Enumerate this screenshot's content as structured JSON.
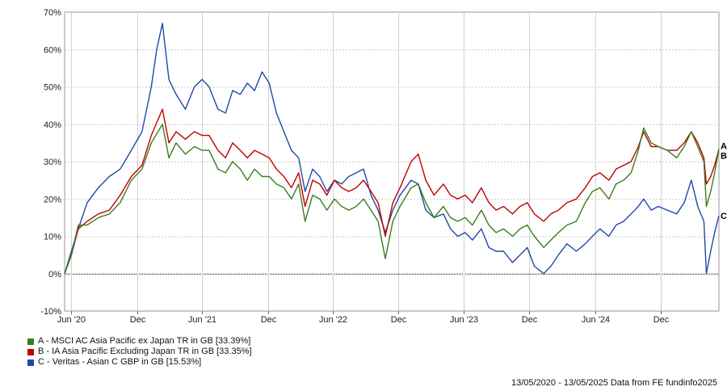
{
  "chart_data": {
    "type": "line",
    "xlabel": "",
    "ylabel": "",
    "x_range": [
      "2020-05-13",
      "2025-05-13"
    ],
    "ylim": [
      -10,
      70
    ],
    "y_ticks": [
      -10,
      0,
      10,
      20,
      30,
      40,
      50,
      60,
      70
    ],
    "y_tick_labels": [
      "-10%",
      "0%",
      "10%",
      "20%",
      "30%",
      "40%",
      "50%",
      "60%",
      "70%"
    ],
    "x_ticks": [
      {
        "date": "2020-06-01",
        "label": "Jun '20"
      },
      {
        "date": "2020-12-01",
        "label": "Dec"
      },
      {
        "date": "2021-06-01",
        "label": "Jun '21"
      },
      {
        "date": "2021-12-01",
        "label": "Dec"
      },
      {
        "date": "2022-06-01",
        "label": "Jun '22"
      },
      {
        "date": "2022-12-01",
        "label": "Dec"
      },
      {
        "date": "2023-06-01",
        "label": "Jun '23"
      },
      {
        "date": "2023-12-01",
        "label": "Dec"
      },
      {
        "date": "2024-06-01",
        "label": "Jun '24"
      },
      {
        "date": "2024-12-01",
        "label": "Dec"
      }
    ],
    "grid": true,
    "legend_position": "bottom-left",
    "series": [
      {
        "name": "A - MSCI AC Asia Pacific ex Japan TR in GB [33.39%]",
        "end_label": "A",
        "color": "#3a7d1e",
        "points": [
          [
            "2020-05-13",
            0
          ],
          [
            "2020-06-01",
            5
          ],
          [
            "2020-06-20",
            13
          ],
          [
            "2020-07-15",
            13
          ],
          [
            "2020-08-15",
            15
          ],
          [
            "2020-09-15",
            16
          ],
          [
            "2020-10-15",
            19
          ],
          [
            "2020-11-15",
            25
          ],
          [
            "2020-12-15",
            28
          ],
          [
            "2021-01-10",
            35
          ],
          [
            "2021-02-10",
            40
          ],
          [
            "2021-02-28",
            31
          ],
          [
            "2021-03-20",
            35
          ],
          [
            "2021-04-15",
            32
          ],
          [
            "2021-05-10",
            34
          ],
          [
            "2021-06-01",
            33
          ],
          [
            "2021-06-20",
            33
          ],
          [
            "2021-07-15",
            28
          ],
          [
            "2021-08-05",
            27
          ],
          [
            "2021-08-25",
            30
          ],
          [
            "2021-09-15",
            28
          ],
          [
            "2021-10-05",
            25
          ],
          [
            "2021-10-25",
            28
          ],
          [
            "2021-11-15",
            26
          ],
          [
            "2021-12-05",
            26
          ],
          [
            "2021-12-25",
            24
          ],
          [
            "2022-01-15",
            23
          ],
          [
            "2022-02-05",
            20
          ],
          [
            "2022-02-25",
            24
          ],
          [
            "2022-03-15",
            14
          ],
          [
            "2022-04-05",
            21
          ],
          [
            "2022-04-25",
            20
          ],
          [
            "2022-05-15",
            17
          ],
          [
            "2022-06-05",
            20
          ],
          [
            "2022-06-25",
            18
          ],
          [
            "2022-07-15",
            17
          ],
          [
            "2022-08-05",
            18
          ],
          [
            "2022-08-25",
            20
          ],
          [
            "2022-09-15",
            17
          ],
          [
            "2022-10-05",
            14
          ],
          [
            "2022-10-25",
            4
          ],
          [
            "2022-11-15",
            14
          ],
          [
            "2022-12-05",
            18
          ],
          [
            "2023-01-05",
            23
          ],
          [
            "2023-01-25",
            24
          ],
          [
            "2023-02-15",
            19
          ],
          [
            "2023-03-10",
            15
          ],
          [
            "2023-04-05",
            18
          ],
          [
            "2023-04-25",
            15
          ],
          [
            "2023-05-15",
            14
          ],
          [
            "2023-06-05",
            15
          ],
          [
            "2023-06-25",
            13
          ],
          [
            "2023-07-20",
            17
          ],
          [
            "2023-08-10",
            13
          ],
          [
            "2023-08-30",
            11
          ],
          [
            "2023-09-20",
            12
          ],
          [
            "2023-10-15",
            10
          ],
          [
            "2023-11-05",
            12
          ],
          [
            "2023-11-25",
            13
          ],
          [
            "2023-12-15",
            10
          ],
          [
            "2024-01-10",
            7
          ],
          [
            "2024-01-30",
            9
          ],
          [
            "2024-02-20",
            11
          ],
          [
            "2024-03-15",
            13
          ],
          [
            "2024-04-10",
            14
          ],
          [
            "2024-05-05",
            19
          ],
          [
            "2024-05-25",
            22
          ],
          [
            "2024-06-15",
            23
          ],
          [
            "2024-07-10",
            20
          ],
          [
            "2024-07-30",
            24
          ],
          [
            "2024-08-20",
            25
          ],
          [
            "2024-09-10",
            27
          ],
          [
            "2024-09-30",
            33
          ],
          [
            "2024-10-15",
            39
          ],
          [
            "2024-11-05",
            35
          ],
          [
            "2024-11-25",
            34
          ],
          [
            "2024-12-20",
            33
          ],
          [
            "2025-01-15",
            31
          ],
          [
            "2025-02-05",
            34
          ],
          [
            "2025-02-25",
            38
          ],
          [
            "2025-03-15",
            34
          ],
          [
            "2025-04-01",
            30
          ],
          [
            "2025-04-08",
            18
          ],
          [
            "2025-04-20",
            22
          ],
          [
            "2025-05-01",
            27
          ],
          [
            "2025-05-13",
            33.39
          ]
        ]
      },
      {
        "name": "B - IA Asia Pacific Excluding Japan TR in GB [33.35%]",
        "end_label": "B",
        "color": "#c00000",
        "points": [
          [
            "2020-05-13",
            0
          ],
          [
            "2020-06-01",
            5
          ],
          [
            "2020-06-20",
            12
          ],
          [
            "2020-07-15",
            14
          ],
          [
            "2020-08-15",
            16
          ],
          [
            "2020-09-15",
            17
          ],
          [
            "2020-10-15",
            21
          ],
          [
            "2020-11-15",
            26
          ],
          [
            "2020-12-15",
            29
          ],
          [
            "2021-01-10",
            37
          ],
          [
            "2021-02-10",
            44
          ],
          [
            "2021-02-28",
            35
          ],
          [
            "2021-03-20",
            38
          ],
          [
            "2021-04-15",
            36
          ],
          [
            "2021-05-10",
            38
          ],
          [
            "2021-06-01",
            37
          ],
          [
            "2021-06-20",
            37
          ],
          [
            "2021-07-15",
            33
          ],
          [
            "2021-08-05",
            31
          ],
          [
            "2021-08-25",
            35
          ],
          [
            "2021-09-15",
            33
          ],
          [
            "2021-10-05",
            31
          ],
          [
            "2021-10-25",
            33
          ],
          [
            "2021-11-15",
            32
          ],
          [
            "2021-12-05",
            31
          ],
          [
            "2021-12-25",
            28
          ],
          [
            "2022-01-15",
            26
          ],
          [
            "2022-02-05",
            23
          ],
          [
            "2022-02-25",
            27
          ],
          [
            "2022-03-15",
            18
          ],
          [
            "2022-04-05",
            25
          ],
          [
            "2022-04-25",
            24
          ],
          [
            "2022-05-15",
            21
          ],
          [
            "2022-06-05",
            25
          ],
          [
            "2022-06-25",
            23
          ],
          [
            "2022-07-15",
            22
          ],
          [
            "2022-08-05",
            23
          ],
          [
            "2022-08-25",
            25
          ],
          [
            "2022-09-15",
            22
          ],
          [
            "2022-10-05",
            19
          ],
          [
            "2022-10-25",
            10
          ],
          [
            "2022-11-15",
            19
          ],
          [
            "2022-12-05",
            23
          ],
          [
            "2023-01-05",
            30
          ],
          [
            "2023-01-25",
            32
          ],
          [
            "2023-02-15",
            25
          ],
          [
            "2023-03-10",
            21
          ],
          [
            "2023-04-05",
            24
          ],
          [
            "2023-04-25",
            21
          ],
          [
            "2023-05-15",
            20
          ],
          [
            "2023-06-05",
            21
          ],
          [
            "2023-06-25",
            19
          ],
          [
            "2023-07-20",
            23
          ],
          [
            "2023-08-10",
            19
          ],
          [
            "2023-08-30",
            17
          ],
          [
            "2023-09-20",
            18
          ],
          [
            "2023-10-15",
            16
          ],
          [
            "2023-11-05",
            18
          ],
          [
            "2023-11-25",
            19
          ],
          [
            "2023-12-15",
            16
          ],
          [
            "2024-01-10",
            14
          ],
          [
            "2024-01-30",
            16
          ],
          [
            "2024-02-20",
            17
          ],
          [
            "2024-03-15",
            19
          ],
          [
            "2024-04-10",
            20
          ],
          [
            "2024-05-05",
            23
          ],
          [
            "2024-05-25",
            26
          ],
          [
            "2024-06-15",
            27
          ],
          [
            "2024-07-10",
            25
          ],
          [
            "2024-07-30",
            28
          ],
          [
            "2024-08-20",
            29
          ],
          [
            "2024-09-10",
            30
          ],
          [
            "2024-09-30",
            34
          ],
          [
            "2024-10-15",
            38
          ],
          [
            "2024-11-05",
            34
          ],
          [
            "2024-11-25",
            34
          ],
          [
            "2024-12-20",
            33
          ],
          [
            "2025-01-15",
            33
          ],
          [
            "2025-02-05",
            35
          ],
          [
            "2025-02-25",
            38
          ],
          [
            "2025-03-15",
            35
          ],
          [
            "2025-04-01",
            31
          ],
          [
            "2025-04-08",
            24
          ],
          [
            "2025-04-20",
            26
          ],
          [
            "2025-05-01",
            29
          ],
          [
            "2025-05-13",
            33.35
          ]
        ]
      },
      {
        "name": "C - Veritas - Asian C GBP in GB [15.53%]",
        "end_label": "C",
        "color": "#2148a6",
        "points": [
          [
            "2020-05-13",
            0
          ],
          [
            "2020-06-01",
            6
          ],
          [
            "2020-06-20",
            12
          ],
          [
            "2020-07-15",
            19
          ],
          [
            "2020-08-15",
            23
          ],
          [
            "2020-09-15",
            26
          ],
          [
            "2020-10-15",
            28
          ],
          [
            "2020-11-15",
            33
          ],
          [
            "2020-12-15",
            38
          ],
          [
            "2021-01-10",
            50
          ],
          [
            "2021-01-25",
            60
          ],
          [
            "2021-02-10",
            67
          ],
          [
            "2021-02-28",
            52
          ],
          [
            "2021-03-20",
            48
          ],
          [
            "2021-04-15",
            44
          ],
          [
            "2021-05-10",
            50
          ],
          [
            "2021-06-01",
            52
          ],
          [
            "2021-06-20",
            50
          ],
          [
            "2021-07-15",
            44
          ],
          [
            "2021-08-05",
            43
          ],
          [
            "2021-08-25",
            49
          ],
          [
            "2021-09-15",
            48
          ],
          [
            "2021-10-05",
            51
          ],
          [
            "2021-10-25",
            49
          ],
          [
            "2021-11-15",
            54
          ],
          [
            "2021-12-05",
            51
          ],
          [
            "2021-12-25",
            43
          ],
          [
            "2022-01-15",
            38
          ],
          [
            "2022-02-05",
            33
          ],
          [
            "2022-02-25",
            31
          ],
          [
            "2022-03-15",
            22
          ],
          [
            "2022-04-05",
            28
          ],
          [
            "2022-04-25",
            26
          ],
          [
            "2022-05-15",
            22
          ],
          [
            "2022-06-05",
            25
          ],
          [
            "2022-06-25",
            24
          ],
          [
            "2022-07-15",
            26
          ],
          [
            "2022-08-05",
            27
          ],
          [
            "2022-08-25",
            28
          ],
          [
            "2022-09-15",
            21
          ],
          [
            "2022-10-05",
            17
          ],
          [
            "2022-10-25",
            11
          ],
          [
            "2022-11-15",
            17
          ],
          [
            "2022-12-05",
            21
          ],
          [
            "2023-01-05",
            25
          ],
          [
            "2023-01-25",
            24
          ],
          [
            "2023-02-15",
            17
          ],
          [
            "2023-03-10",
            15
          ],
          [
            "2023-04-05",
            16
          ],
          [
            "2023-04-25",
            12
          ],
          [
            "2023-05-15",
            10
          ],
          [
            "2023-06-05",
            11
          ],
          [
            "2023-06-25",
            9
          ],
          [
            "2023-07-20",
            12
          ],
          [
            "2023-08-10",
            7
          ],
          [
            "2023-08-30",
            6
          ],
          [
            "2023-09-20",
            6
          ],
          [
            "2023-10-15",
            3
          ],
          [
            "2023-11-05",
            5
          ],
          [
            "2023-11-25",
            7
          ],
          [
            "2023-12-15",
            2
          ],
          [
            "2024-01-10",
            0
          ],
          [
            "2024-01-30",
            2
          ],
          [
            "2024-02-20",
            5
          ],
          [
            "2024-03-15",
            8
          ],
          [
            "2024-04-10",
            6
          ],
          [
            "2024-05-05",
            8
          ],
          [
            "2024-05-25",
            10
          ],
          [
            "2024-06-15",
            12
          ],
          [
            "2024-07-10",
            10
          ],
          [
            "2024-07-30",
            13
          ],
          [
            "2024-08-20",
            14
          ],
          [
            "2024-09-10",
            16
          ],
          [
            "2024-09-30",
            18
          ],
          [
            "2024-10-15",
            20
          ],
          [
            "2024-11-05",
            17
          ],
          [
            "2024-11-25",
            18
          ],
          [
            "2024-12-20",
            17
          ],
          [
            "2025-01-15",
            16
          ],
          [
            "2025-02-05",
            19
          ],
          [
            "2025-02-25",
            25
          ],
          [
            "2025-03-15",
            18
          ],
          [
            "2025-04-01",
            14
          ],
          [
            "2025-04-08",
            0
          ],
          [
            "2025-04-20",
            6
          ],
          [
            "2025-05-01",
            11
          ],
          [
            "2025-05-13",
            15.53
          ]
        ]
      }
    ]
  },
  "legend": [
    {
      "label": "A - MSCI AC Asia Pacific ex Japan TR in GB [33.39%]",
      "color": "#3a7d1e"
    },
    {
      "label": "B - IA Asia Pacific Excluding Japan TR in GB [33.35%]",
      "color": "#c00000"
    },
    {
      "label": "C - Veritas - Asian C GBP in GB [15.53%]",
      "color": "#2148a6"
    }
  ],
  "footer": "13/05/2020 - 13/05/2025 Data from FE fundinfo2025"
}
